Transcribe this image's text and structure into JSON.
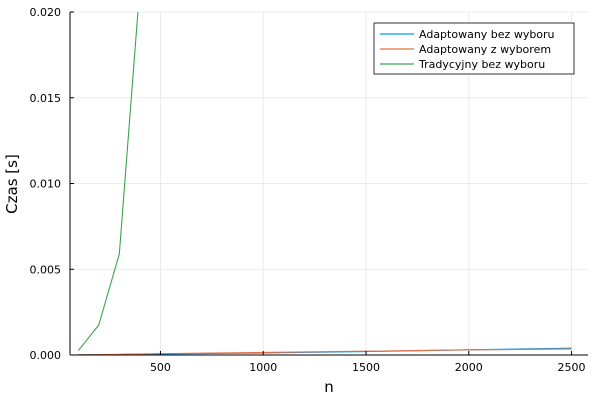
{
  "chart_data": {
    "type": "line",
    "title": "",
    "xlabel": "n",
    "ylabel": "Czas [s]",
    "xlim": [
      60,
      2580
    ],
    "ylim": [
      0,
      0.02
    ],
    "x_ticks": [
      500,
      1000,
      1500,
      2000,
      2500
    ],
    "x_tick_labels": [
      "500",
      "1000",
      "1500",
      "2000",
      "2500"
    ],
    "y_ticks": [
      0,
      0.005,
      0.01,
      0.015,
      0.02
    ],
    "y_tick_labels": [
      "0.000",
      "0.005",
      "0.010",
      "0.015",
      "0.020"
    ],
    "grid": true,
    "legend_position": "top-right",
    "series": [
      {
        "name": "Adaptowany bez wyboru",
        "color": "#009af9",
        "x": [
          100,
          200,
          300,
          400,
          500,
          1000,
          1500,
          2000,
          2500
        ],
        "y": [
          1e-05,
          2e-05,
          3e-05,
          5e-05,
          6e-05,
          0.00012,
          0.0002,
          0.0003,
          0.0004
        ]
      },
      {
        "name": "Adaptowany z wyborem",
        "color": "#e26f46",
        "x": [
          100,
          200,
          300,
          400,
          500,
          1000,
          1500,
          2000,
          2500
        ],
        "y": [
          1e-05,
          2e-05,
          4e-05,
          6e-05,
          8e-05,
          0.00015,
          0.00022,
          0.0003,
          0.00035
        ]
      },
      {
        "name": "Tradycyjny bez wyboru",
        "color": "#3da44d",
        "x": [
          100,
          200,
          300,
          400
        ],
        "y": [
          0.00025,
          0.00175,
          0.0059,
          0.0215
        ]
      }
    ]
  }
}
